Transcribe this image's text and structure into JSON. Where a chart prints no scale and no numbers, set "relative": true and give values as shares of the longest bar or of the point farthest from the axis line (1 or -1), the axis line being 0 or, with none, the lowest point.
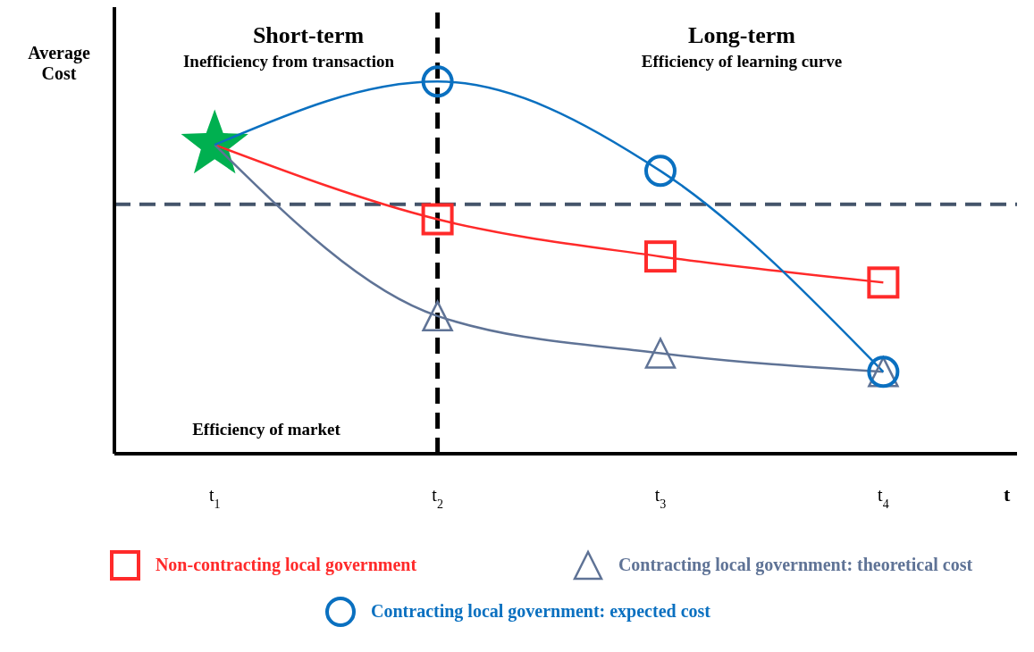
{
  "chart_data": {
    "type": "line",
    "relative": true,
    "ylabel": "Average Cost",
    "xlabel": "t",
    "categories": [
      "t$_{1}$",
      "t$_{2}$",
      "t$_{3}$",
      "t$_{4}$"
    ],
    "series": [
      {
        "name": "Non-contracting local government",
        "color": "#ff2a2a",
        "marker": "square",
        "values": [
          0.83,
          0.63,
          0.53,
          0.46
        ]
      },
      {
        "name": "Contracting local government: theoretical cost",
        "color": "#5f7396",
        "marker": "triangle",
        "values": [
          0.83,
          0.37,
          0.27,
          0.22
        ]
      },
      {
        "name": "Contracting local government: expected cost",
        "color": "#0a70c0",
        "marker": "circle",
        "values": [
          0.83,
          1.0,
          0.76,
          0.22
        ]
      },
      {
        "type": "scatter",
        "color": "#00b050",
        "marker": "star",
        "x": [
          "t$_{1}$"
        ],
        "values": [
          0.83
        ]
      }
    ],
    "ref_lines": [
      {
        "axis": "y",
        "value": 0.67,
        "color": "#44546a",
        "line_style": "dashed"
      },
      {
        "axis": "x",
        "value": "t$_{2}$",
        "color": "#000000",
        "line_style": "dashed"
      }
    ],
    "annotations": [
      "Short-term",
      "Inefficiency from transaction",
      "Long-term",
      "Efficiency of learning curve",
      "Efficiency of market"
    ],
    "grid": false,
    "legend": "bottom"
  }
}
